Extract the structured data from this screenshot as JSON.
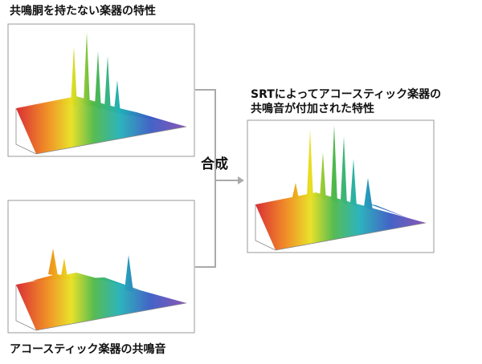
{
  "panels": [
    {
      "caption": "共鳴胴を持たない楽器の特性"
    },
    {
      "caption": "アコースティック楽器の共鳴音"
    },
    {
      "caption_lines": [
        "SRTによってアコースティック楽器の",
        "共鳴音が付加された特性"
      ]
    }
  ],
  "operation": "合成"
}
